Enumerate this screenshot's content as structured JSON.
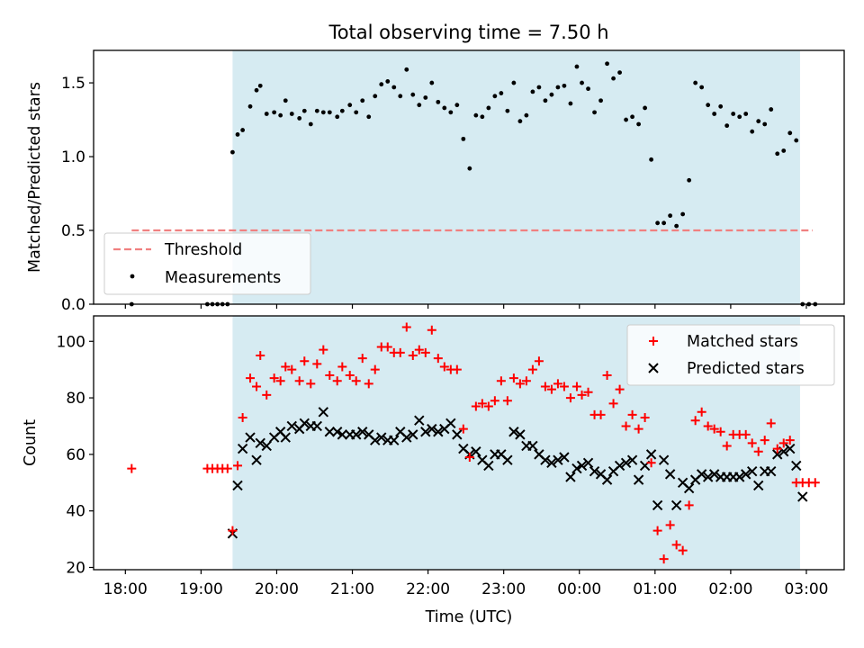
{
  "figure": {
    "title": "Total observing time = 7.50 h",
    "xlabel": "Time (UTC)",
    "x_tick_labels": [
      "18:00",
      "19:00",
      "20:00",
      "21:00",
      "22:00",
      "23:00",
      "00:00",
      "01:00",
      "02:00",
      "03:00"
    ]
  },
  "colors": {
    "shade": "#add8e6",
    "threshold": "#f08080",
    "matched": "#ff0000",
    "predicted": "#000000",
    "measurement": "#000000"
  },
  "chart_data": [
    {
      "type": "scatter",
      "panel": "top",
      "ylabel": "Matched/Predicted stars",
      "xlim_hours": [
        17.58,
        27.5
      ],
      "ylim": [
        0,
        1.72
      ],
      "y_ticks": [
        "0.0",
        "0.5",
        "1.0",
        "1.5"
      ],
      "shaded_interval": [
        "19:25",
        "02:55"
      ],
      "legend_position": "lower left",
      "threshold": {
        "name": "Threshold",
        "value": 0.5,
        "x_range": [
          "18:05",
          "03:05"
        ]
      },
      "series": [
        {
          "name": "Measurements",
          "x": [
            "18:05",
            "19:05",
            "19:09",
            "19:13",
            "19:17",
            "19:21",
            "19:25",
            "19:29",
            "19:33",
            "19:39",
            "19:44",
            "19:47",
            "19:52",
            "19:58",
            "20:03",
            "20:07",
            "20:12",
            "20:18",
            "20:22",
            "20:27",
            "20:32",
            "20:37",
            "20:42",
            "20:48",
            "20:52",
            "20:58",
            "21:03",
            "21:08",
            "21:13",
            "21:18",
            "21:23",
            "21:28",
            "21:33",
            "21:38",
            "21:43",
            "21:48",
            "21:53",
            "21:58",
            "22:03",
            "22:08",
            "22:13",
            "22:18",
            "22:23",
            "22:28",
            "22:33",
            "22:38",
            "22:43",
            "22:48",
            "22:53",
            "22:58",
            "23:03",
            "23:08",
            "23:13",
            "23:18",
            "23:23",
            "23:28",
            "23:33",
            "23:38",
            "23:43",
            "23:48",
            "23:53",
            "23:58",
            "00:02",
            "00:07",
            "00:12",
            "00:17",
            "00:22",
            "00:27",
            "00:32",
            "00:37",
            "00:42",
            "00:47",
            "00:52",
            "00:57",
            "01:02",
            "01:07",
            "01:12",
            "01:17",
            "01:22",
            "01:27",
            "01:32",
            "01:37",
            "01:42",
            "01:47",
            "01:52",
            "01:57",
            "02:02",
            "02:07",
            "02:12",
            "02:17",
            "02:22",
            "02:27",
            "02:32",
            "02:37",
            "02:42",
            "02:47",
            "02:52",
            "02:57",
            "03:02",
            "03:07"
          ],
          "y": [
            0.0,
            0.0,
            0.0,
            0.0,
            0.0,
            0.0,
            1.03,
            1.15,
            1.18,
            1.34,
            1.45,
            1.48,
            1.29,
            1.3,
            1.28,
            1.38,
            1.29,
            1.26,
            1.31,
            1.22,
            1.31,
            1.3,
            1.3,
            1.27,
            1.31,
            1.35,
            1.3,
            1.38,
            1.27,
            1.41,
            1.49,
            1.51,
            1.47,
            1.41,
            1.59,
            1.42,
            1.35,
            1.4,
            1.5,
            1.37,
            1.33,
            1.3,
            1.35,
            1.12,
            0.92,
            1.28,
            1.27,
            1.33,
            1.41,
            1.43,
            1.31,
            1.5,
            1.24,
            1.28,
            1.44,
            1.47,
            1.38,
            1.42,
            1.47,
            1.48,
            1.36,
            1.61,
            1.5,
            1.46,
            1.3,
            1.38,
            1.63,
            1.53,
            1.57,
            1.25,
            1.27,
            1.22,
            1.33,
            0.98,
            0.55,
            0.55,
            0.6,
            0.53,
            0.61,
            0.84,
            1.5,
            1.47,
            1.35,
            1.29,
            1.34,
            1.21,
            1.29,
            1.27,
            1.29,
            1.17,
            1.24,
            1.22,
            1.32,
            1.02,
            1.04,
            1.16,
            1.11,
            0.0,
            0.0,
            0.0
          ]
        }
      ]
    },
    {
      "type": "scatter",
      "panel": "bottom",
      "ylabel": "Count",
      "xlim_hours": [
        17.58,
        27.5
      ],
      "ylim": [
        19.2,
        109
      ],
      "y_ticks": [
        "20",
        "40",
        "60",
        "80",
        "100"
      ],
      "shaded_interval": [
        "19:25",
        "02:55"
      ],
      "legend_position": "upper right",
      "series": [
        {
          "name": "Matched stars",
          "marker": "+",
          "x": [
            "18:05",
            "19:05",
            "19:09",
            "19:13",
            "19:17",
            "19:21",
            "19:25",
            "19:29",
            "19:33",
            "19:39",
            "19:44",
            "19:47",
            "19:52",
            "19:58",
            "20:03",
            "20:07",
            "20:12",
            "20:18",
            "20:22",
            "20:27",
            "20:32",
            "20:37",
            "20:42",
            "20:48",
            "20:52",
            "20:58",
            "21:03",
            "21:08",
            "21:13",
            "21:18",
            "21:23",
            "21:28",
            "21:33",
            "21:38",
            "21:43",
            "21:48",
            "21:53",
            "21:58",
            "22:03",
            "22:08",
            "22:13",
            "22:18",
            "22:23",
            "22:28",
            "22:33",
            "22:38",
            "22:43",
            "22:48",
            "22:53",
            "22:58",
            "23:03",
            "23:08",
            "23:13",
            "23:18",
            "23:23",
            "23:28",
            "23:33",
            "23:38",
            "23:43",
            "23:48",
            "23:53",
            "23:58",
            "00:02",
            "00:07",
            "00:12",
            "00:17",
            "00:22",
            "00:27",
            "00:32",
            "00:37",
            "00:42",
            "00:47",
            "00:52",
            "00:57",
            "01:02",
            "01:07",
            "01:12",
            "01:17",
            "01:22",
            "01:27",
            "01:32",
            "01:37",
            "01:42",
            "01:47",
            "01:52",
            "01:57",
            "02:02",
            "02:07",
            "02:12",
            "02:17",
            "02:22",
            "02:27",
            "02:32",
            "02:37",
            "02:42",
            "02:47",
            "02:52",
            "02:57",
            "03:02",
            "03:07"
          ],
          "y": [
            55,
            55,
            55,
            55,
            55,
            55,
            33,
            56,
            73,
            87,
            84,
            95,
            81,
            87,
            86,
            91,
            90,
            86,
            93,
            85,
            92,
            97,
            88,
            86,
            91,
            88,
            86,
            94,
            85,
            90,
            98,
            98,
            96,
            96,
            105,
            95,
            97,
            96,
            104,
            94,
            91,
            90,
            90,
            69,
            59,
            77,
            78,
            77,
            79,
            86,
            79,
            87,
            85,
            86,
            90,
            93,
            84,
            83,
            85,
            84,
            80,
            84,
            81,
            82,
            74,
            74,
            88,
            78,
            83,
            70,
            74,
            69,
            73,
            57,
            33,
            23,
            35,
            28,
            26,
            42,
            72,
            75,
            70,
            69,
            68,
            63,
            67,
            67,
            67,
            64,
            61,
            65,
            71,
            62,
            64,
            65,
            50,
            50,
            50,
            50
          ]
        },
        {
          "name": "Predicted stars",
          "marker": "x",
          "x": [
            "19:25",
            "19:29",
            "19:33",
            "19:39",
            "19:44",
            "19:47",
            "19:52",
            "19:58",
            "20:03",
            "20:07",
            "20:12",
            "20:18",
            "20:22",
            "20:27",
            "20:32",
            "20:37",
            "20:42",
            "20:48",
            "20:52",
            "20:58",
            "21:03",
            "21:08",
            "21:13",
            "21:18",
            "21:23",
            "21:28",
            "21:33",
            "21:38",
            "21:43",
            "21:48",
            "21:53",
            "21:58",
            "22:03",
            "22:08",
            "22:13",
            "22:18",
            "22:23",
            "22:28",
            "22:33",
            "22:38",
            "22:43",
            "22:48",
            "22:53",
            "22:58",
            "23:03",
            "23:08",
            "23:13",
            "23:18",
            "23:23",
            "23:28",
            "23:33",
            "23:38",
            "23:43",
            "23:48",
            "23:53",
            "23:58",
            "00:02",
            "00:07",
            "00:12",
            "00:17",
            "00:22",
            "00:27",
            "00:32",
            "00:37",
            "00:42",
            "00:47",
            "00:52",
            "00:57",
            "01:02",
            "01:07",
            "01:12",
            "01:17",
            "01:22",
            "01:27",
            "01:32",
            "01:37",
            "01:42",
            "01:47",
            "01:52",
            "01:57",
            "02:02",
            "02:07",
            "02:12",
            "02:17",
            "02:22",
            "02:27",
            "02:32",
            "02:37",
            "02:42",
            "02:47",
            "02:52",
            "02:57"
          ],
          "y": [
            32,
            49,
            62,
            66,
            58,
            64,
            63,
            66,
            68,
            66,
            70,
            69,
            71,
            70,
            70,
            75,
            68,
            68,
            67,
            67,
            67,
            68,
            67,
            65,
            66,
            65,
            65,
            68,
            66,
            67,
            72,
            68,
            69,
            68,
            69,
            71,
            67,
            62,
            60,
            61,
            58,
            56,
            60,
            60,
            58,
            68,
            67,
            63,
            63,
            60,
            58,
            57,
            58,
            59,
            52,
            55,
            56,
            57,
            54,
            53,
            51,
            54,
            56,
            57,
            58,
            51,
            56,
            60,
            42,
            58,
            53,
            42,
            50,
            48,
            51,
            53,
            52,
            53,
            52,
            52,
            52,
            52,
            53,
            54,
            49,
            54,
            54,
            60,
            61,
            62,
            56,
            45
          ]
        }
      ]
    }
  ]
}
